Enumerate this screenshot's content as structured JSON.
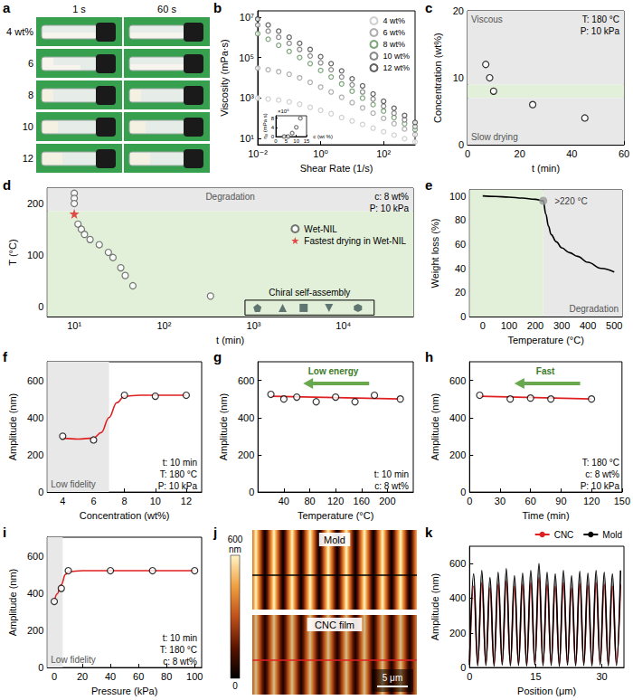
{
  "chart_data": [
    {
      "panel": "a",
      "type": "photographs",
      "columns": [
        "1 s",
        "60 s"
      ],
      "rows": [
        "4 wt%",
        "6",
        "8",
        "10",
        "12"
      ]
    },
    {
      "panel": "b",
      "type": "scatter",
      "marker": "open_circle",
      "x_label": "Shear Rate (1/s)",
      "y_label": "Viscosity (mPa·s)",
      "log": true,
      "grid": false,
      "legend": "upper right",
      "xlim": [
        0.01,
        1000
      ],
      "xticks": [
        {
          "value": 0.01,
          "label": "10⁻²"
        },
        {
          "value": 1,
          "label": "10⁰"
        },
        {
          "value": 100,
          "label": "10²"
        }
      ],
      "ylim": [
        5,
        20000000
      ],
      "yticks": [
        {
          "value": 10,
          "label": "10¹"
        },
        {
          "value": 1000,
          "label": "10³"
        },
        {
          "value": 100000,
          "label": "10⁵"
        },
        {
          "value": 10000000,
          "label": "10⁷"
        }
      ],
      "x": [
        0.01,
        0.0215,
        0.0464,
        0.1,
        0.215,
        0.464,
        1,
        2.15,
        4.64,
        10,
        21.5,
        46.4,
        100,
        215,
        464,
        1000
      ],
      "series": [
        {
          "name": "4 wt%",
          "color": "#c4c4c4",
          "values": [
            1000,
            900,
            800,
            650,
            500,
            350,
            250,
            170,
            110,
            75,
            50,
            33,
            22,
            15,
            10,
            7
          ]
        },
        {
          "name": "6 wt%",
          "color": "#9a9a9a",
          "values": [
            30000,
            25000,
            20000,
            15000,
            10000,
            6000,
            3500,
            2000,
            1100,
            600,
            330,
            180,
            100,
            55,
            30,
            16
          ]
        },
        {
          "name": "8 wt%",
          "color": "#5e8f5a",
          "values": [
            1500000,
            800000,
            400000,
            200000,
            100000,
            50000,
            23000,
            11000,
            5000,
            2200,
            1000,
            480,
            230,
            110,
            55,
            28
          ]
        },
        {
          "name": "10 wt%",
          "color": "#6a6a6a",
          "values": [
            4000000,
            2000000,
            1000000,
            500000,
            250000,
            120000,
            55000,
            25000,
            11000,
            4500,
            2000,
            900,
            400,
            180,
            85,
            40
          ]
        },
        {
          "name": "12 wt%",
          "color": "#3a3a3a",
          "values": [
            7900000,
            4000000,
            2000000,
            1000000,
            500000,
            250000,
            110000,
            50000,
            22000,
            9000,
            4000,
            1600,
            700,
            320,
            140,
            63
          ]
        }
      ],
      "inset": {
        "type": "scatter",
        "marker": "open_circle",
        "color": "#555555",
        "x_label": "c (wt %)",
        "y_label": "η₀ (mPa s)",
        "y_multiplier": "×10⁶",
        "x": [
          4,
          6,
          8,
          10,
          12
        ],
        "values": [
          1000,
          30000,
          1500000,
          4000000,
          7900000
        ],
        "xlim": [
          0,
          15
        ],
        "xticks": [
          0,
          5,
          10,
          15
        ],
        "ylim": [
          0,
          9000000
        ],
        "yticks": [
          0,
          {
            "value": 4000000,
            "label": "4"
          },
          {
            "value": 8000000,
            "label": "8"
          }
        ]
      }
    },
    {
      "panel": "c",
      "type": "scatter",
      "marker": "open_circle",
      "color": "#000000",
      "x_label": "t (min)",
      "y_label": "Concentration (wt%)",
      "grid": false,
      "xlim": [
        0,
        60
      ],
      "xticks": [
        0,
        20,
        40,
        60
      ],
      "ylim": [
        0,
        20
      ],
      "yticks": [
        0,
        10,
        20
      ],
      "regions": [
        {
          "axis": "y",
          "range": [
            9,
            20
          ],
          "color": "#e8e8e8",
          "label": "Viscous"
        },
        {
          "axis": "y",
          "range": [
            7,
            9
          ],
          "color": "#e2f0d9"
        },
        {
          "axis": "y",
          "range": [
            0,
            7
          ],
          "color": "#e8e8e8",
          "label": "Slow drying"
        }
      ],
      "series": [
        {
          "x": [
            7,
            8.5,
            10,
            25,
            45
          ],
          "values": [
            12,
            10,
            8,
            6,
            4
          ]
        }
      ],
      "annotations": [
        "T: 180 °C",
        "P: 10 kPa"
      ]
    },
    {
      "panel": "d",
      "type": "scatter",
      "x_label": "t (min)",
      "y_label": "T (°C)",
      "log": "x",
      "grid": false,
      "legend": "right",
      "xlim": [
        5,
        60000
      ],
      "xticks": [
        {
          "value": 10,
          "label": "10¹"
        },
        {
          "value": 100,
          "label": "10²"
        },
        {
          "value": 1000,
          "label": "10³"
        },
        {
          "value": 10000,
          "label": "10⁴"
        }
      ],
      "ylim": [
        -20,
        230
      ],
      "yticks": [
        0,
        100,
        200
      ],
      "regions": [
        {
          "axis": "y",
          "range": [
            185,
            230
          ],
          "color": "#e8e8e8",
          "label": "Degradation"
        },
        {
          "axis": "y",
          "range": [
            -20,
            185
          ],
          "color": "#e2f0d9"
        }
      ],
      "series": [
        {
          "name": "Wet-NIL",
          "marker": "open_circle",
          "color": "#555555",
          "x": [
            10,
            10,
            10,
            11,
            12,
            13,
            15,
            19,
            24,
            27,
            33,
            37,
            45,
            330
          ],
          "values": [
            220,
            210,
            200,
            160,
            150,
            140,
            130,
            120,
            105,
            95,
            75,
            60,
            40,
            20
          ]
        },
        {
          "name": "Fastest drying in Wet-NIL",
          "marker": "star",
          "color": "#e02020",
          "x": [
            10
          ],
          "values": [
            180
          ]
        }
      ],
      "group": {
        "label": "Chiral self-assembly",
        "color": "#3e5656",
        "x": [
          1100,
          2100,
          3600,
          6900,
          14500
        ],
        "values": [
          -3,
          -3,
          -3,
          -3,
          -3
        ],
        "markers": [
          "pentagon",
          "triangle",
          "square",
          "triangle_down",
          "hexagon"
        ],
        "xlim": [
          800,
          22000
        ],
        "ylim": [
          -17,
          12
        ]
      },
      "annotations": [
        "c: 8 wt%",
        "P: 10 kPa"
      ]
    },
    {
      "panel": "e",
      "type": "line",
      "color": "#000000",
      "x_label": "Temperature (°C)",
      "y_label": "Weight loss (%)",
      "grid": false,
      "xlim": [
        -50,
        530
      ],
      "xticks": [
        0,
        100,
        200,
        300,
        400,
        500
      ],
      "ylim": [
        0,
        105
      ],
      "yticks": [
        0,
        20,
        40,
        60,
        80,
        100
      ],
      "regions": [
        {
          "axis": "x",
          "range": [
            -50,
            230
          ],
          "color": "#e2f0d9"
        },
        {
          "axis": "x",
          "range": [
            230,
            530
          ],
          "color": "#e8e8e8",
          "label": "Degradation"
        }
      ],
      "series": [
        {
          "x": [
            0,
            50,
            100,
            150,
            200,
            230,
            240,
            250,
            260,
            280,
            300,
            330,
            360,
            400,
            450,
            500
          ],
          "values": [
            100,
            99.6,
            99,
            98.2,
            97.2,
            96,
            85,
            75,
            68,
            62,
            57,
            53,
            50,
            45,
            40,
            37
          ]
        }
      ],
      "highlight": {
        "x": 230,
        "y": 96,
        "color": "#999999",
        "label": ">220 °C"
      }
    },
    {
      "panel": "f",
      "type": "scatter",
      "x_label": "Concentration (wt%)",
      "y_label": "Amplitude (nm)",
      "grid": false,
      "xlim": [
        3,
        13
      ],
      "xticks": [
        4,
        6,
        8,
        10,
        12
      ],
      "ylim": [
        0,
        700
      ],
      "yticks": [
        0,
        200,
        400,
        600
      ],
      "regions": [
        {
          "axis": "x",
          "range": [
            3,
            7
          ],
          "color": "#e8e8e8",
          "label": "Low fidelity"
        }
      ],
      "series": [
        {
          "type": "line",
          "color": "#e02020",
          "x": [
            4,
            5,
            6,
            6.5,
            7,
            7.5,
            8,
            9,
            10,
            12
          ],
          "values": [
            290,
            285,
            290,
            320,
            400,
            480,
            515,
            520,
            520,
            520
          ]
        },
        {
          "marker": "open_circle",
          "color": "#000000",
          "x": [
            4,
            6,
            8,
            10,
            12
          ],
          "values": [
            300,
            280,
            520,
            515,
            520
          ]
        }
      ],
      "annotations": [
        "t: 10 min",
        "T: 180 °C",
        "P: 10 kPa"
      ]
    },
    {
      "panel": "g",
      "type": "scatter",
      "x_label": "Temperature (°C)",
      "y_label": "Amplitude (nm)",
      "grid": false,
      "xlim": [
        0,
        240
      ],
      "xticks": [
        40,
        80,
        120,
        160,
        200
      ],
      "ylim": [
        0,
        700
      ],
      "yticks": [
        0,
        200,
        400,
        600
      ],
      "series": [
        {
          "type": "line",
          "color": "#e02020",
          "x": [
            20,
            220
          ],
          "values": [
            515,
            500
          ]
        },
        {
          "marker": "open_circle",
          "color": "#000000",
          "x": [
            20,
            40,
            60,
            90,
            120,
            150,
            180,
            220
          ],
          "values": [
            525,
            500,
            510,
            485,
            510,
            485,
            520,
            500
          ]
        }
      ],
      "arrow_label": "Low energy",
      "annotations": [
        "t: 10 min",
        "c: 8 wt%"
      ]
    },
    {
      "panel": "h",
      "type": "scatter",
      "x_label": "Time (min)",
      "y_label": "Amplitude (nm)",
      "grid": false,
      "xlim": [
        0,
        150
      ],
      "xticks": [
        0,
        30,
        60,
        90,
        120,
        150
      ],
      "ylim": [
        0,
        700
      ],
      "yticks": [
        0,
        200,
        400,
        600
      ],
      "series": [
        {
          "type": "line",
          "color": "#e02020",
          "x": [
            10,
            120
          ],
          "values": [
            515,
            500
          ]
        },
        {
          "marker": "open_circle",
          "color": "#000000",
          "x": [
            10,
            40,
            60,
            80,
            120
          ],
          "values": [
            520,
            500,
            505,
            500,
            500
          ]
        }
      ],
      "arrow_label": "Fast",
      "annotations": [
        "T: 180 °C",
        "c: 8 wt%",
        "P: 10 kPa"
      ]
    },
    {
      "panel": "i",
      "type": "scatter",
      "x_label": "Pressure (kPa)",
      "y_label": "Amplitude (nm)",
      "grid": false,
      "xlim": [
        -5,
        105
      ],
      "xticks": [
        0,
        20,
        40,
        60,
        80,
        100
      ],
      "ylim": [
        0,
        700
      ],
      "yticks": [
        0,
        200,
        400,
        600
      ],
      "regions": [
        {
          "axis": "x",
          "range": [
            -5,
            6
          ],
          "color": "#e8e8e8",
          "label": "Low fidelity"
        }
      ],
      "series": [
        {
          "type": "line",
          "color": "#e02020",
          "x": [
            0,
            2,
            5,
            8,
            10,
            20,
            100
          ],
          "values": [
            355,
            395,
            445,
            500,
            515,
            520,
            520
          ]
        },
        {
          "marker": "open_circle",
          "color": "#000000",
          "x": [
            0,
            5,
            10,
            40,
            70,
            100
          ],
          "values": [
            355,
            425,
            520,
            520,
            520,
            520
          ]
        }
      ],
      "annotations": [
        "t: 10 min",
        "T: 180 °C",
        "c: 8 wt%"
      ]
    },
    {
      "panel": "j",
      "type": "afm_images",
      "images": [
        {
          "label": "Mold",
          "color": "#000000"
        },
        {
          "label": "CNC film",
          "color": "#e02020"
        }
      ],
      "colorbar": {
        "range": [
          0,
          600
        ],
        "ticks": [
          0,
          600
        ],
        "unit": "nm",
        "colors": [
          "#000000",
          "#5a1400",
          "#c0501a",
          "#f0a040",
          "#fff5c8"
        ]
      },
      "scale_bar": "5 μm"
    },
    {
      "panel": "k",
      "type": "line",
      "x_label": "Position (μm)",
      "y_label": "Amplitude (nm)",
      "grid": false,
      "legend": "top",
      "xlim": [
        0,
        35
      ],
      "xticks": [
        0,
        15,
        30
      ],
      "ylim": [
        0,
        700
      ],
      "yticks": [
        0,
        200,
        400,
        600
      ],
      "x": [
        0,
        0.93,
        1.85,
        2.78,
        3.7,
        4.63,
        5.55,
        6.48,
        7.4,
        8.33,
        9.25,
        10.18,
        11.1,
        12.03,
        12.95,
        13.88,
        14.8,
        15.73,
        16.65,
        17.58,
        18.5,
        19.43,
        20.35,
        21.28,
        22.2,
        23.13,
        24.05,
        24.98,
        25.9,
        26.83,
        27.75,
        28.68,
        29.6,
        30.53,
        31.45,
        32.38,
        33.3,
        34.23
      ],
      "series": [
        {
          "name": "CNC",
          "color": "#e02020",
          "values": [
            30,
            470,
            25,
            490,
            28,
            460,
            22,
            480,
            30,
            500,
            25,
            470,
            28,
            480,
            22,
            490,
            30,
            520,
            25,
            480,
            28,
            470,
            22,
            490,
            30,
            460,
            25,
            485,
            28,
            475,
            22,
            490,
            30,
            480,
            25,
            470,
            28,
            480
          ]
        },
        {
          "name": "Mold",
          "color": "#000000",
          "values": [
            15,
            540,
            10,
            560,
            12,
            520,
            8,
            550,
            14,
            570,
            10,
            530,
            12,
            545,
            9,
            560,
            15,
            600,
            10,
            550,
            12,
            540,
            8,
            560,
            14,
            530,
            10,
            555,
            12,
            545,
            9,
            560,
            15,
            550,
            10,
            540,
            12,
            560
          ]
        }
      ]
    }
  ]
}
